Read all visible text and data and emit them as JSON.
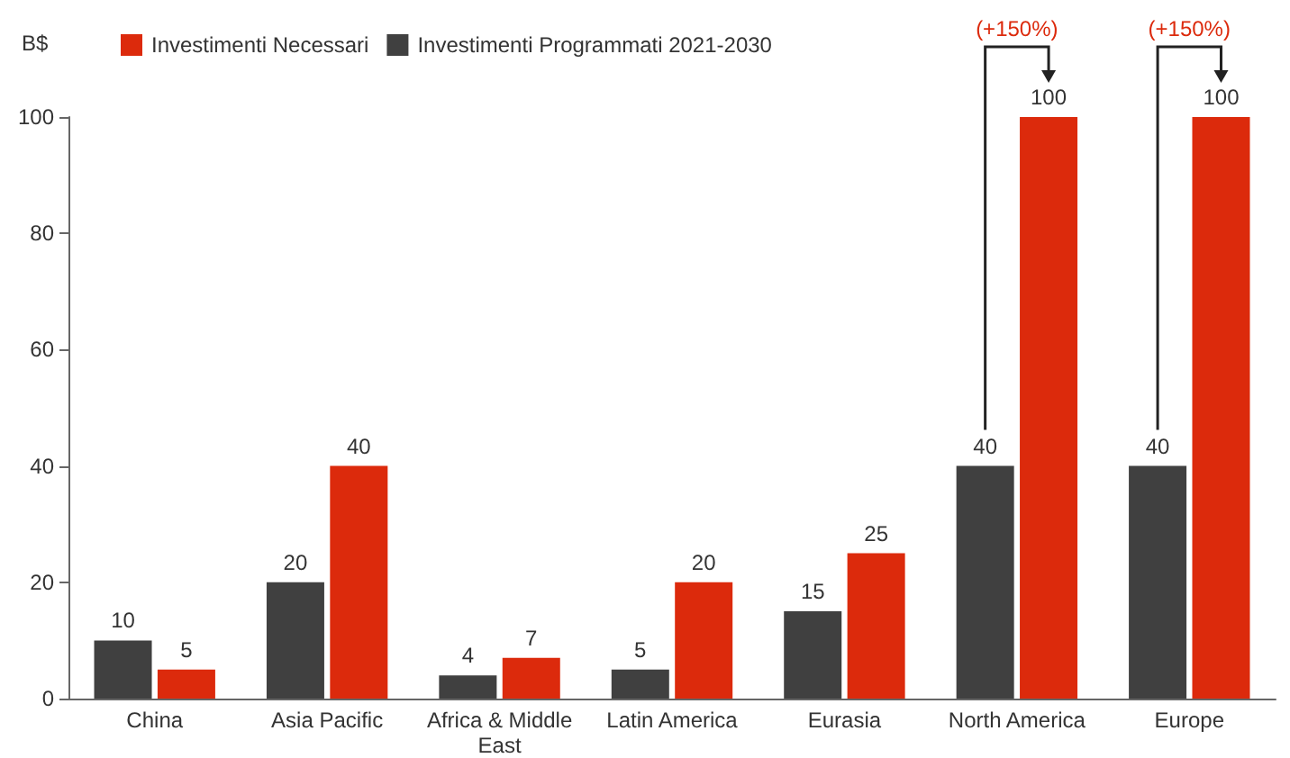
{
  "chart_data": {
    "type": "bar",
    "ylabel": "B$",
    "categories": [
      "China",
      "Asia Pacific",
      "Africa & Middle\nEast",
      "Latin America",
      "Eurasia",
      "North America",
      "Europe"
    ],
    "series": [
      {
        "name": "Investimenti Programmati 2021-2030",
        "color": "#404040",
        "values": [
          10,
          20,
          4,
          5,
          15,
          40,
          40
        ]
      },
      {
        "name": "Investimenti Necessari",
        "color": "#dc2a0c",
        "values": [
          5,
          40,
          7,
          20,
          25,
          100,
          100
        ]
      }
    ],
    "ylim": [
      0,
      100
    ],
    "yticks": [
      0,
      20,
      40,
      60,
      80,
      100
    ],
    "grid": false,
    "legend": "top left",
    "data_labels": true,
    "annotations": [
      "(+150%)",
      "(+150%)"
    ]
  }
}
